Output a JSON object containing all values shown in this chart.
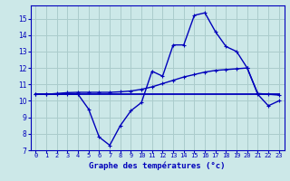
{
  "title": "Graphe des températures (°c)",
  "bg_color": "#cce8e8",
  "grid_color": "#aacccc",
  "line_color": "#0000bb",
  "xlim": [
    -0.5,
    23.5
  ],
  "ylim": [
    7,
    15.8
  ],
  "yticks": [
    7,
    8,
    9,
    10,
    11,
    12,
    13,
    14,
    15
  ],
  "xtick_labels": [
    "0",
    "1",
    "2",
    "3",
    "4",
    "5",
    "6",
    "7",
    "8",
    "9",
    "10",
    "11",
    "12",
    "13",
    "14",
    "15",
    "16",
    "17",
    "18",
    "19",
    "20",
    "21",
    "22",
    "23"
  ],
  "hourly_temps": [
    10.4,
    10.4,
    10.4,
    10.4,
    10.4,
    9.5,
    7.8,
    7.3,
    8.5,
    9.4,
    9.9,
    11.8,
    11.5,
    13.4,
    13.4,
    15.2,
    15.35,
    14.2,
    13.3,
    13.0,
    12.0,
    10.4,
    9.7,
    10.0
  ],
  "mean_line": [
    10.4,
    10.4,
    10.45,
    10.5,
    10.52,
    10.52,
    10.52,
    10.52,
    10.55,
    10.6,
    10.7,
    10.85,
    11.05,
    11.25,
    11.45,
    11.6,
    11.75,
    11.85,
    11.9,
    11.95,
    12.0,
    10.45,
    10.4,
    10.35
  ],
  "flat_line": [
    10.4,
    10.4,
    10.4,
    10.4,
    10.4,
    10.4,
    10.4,
    10.4,
    10.4,
    10.4,
    10.4,
    10.4,
    10.4,
    10.4,
    10.4,
    10.4,
    10.4,
    10.4,
    10.4,
    10.4,
    10.4,
    10.4,
    10.4,
    10.4
  ]
}
